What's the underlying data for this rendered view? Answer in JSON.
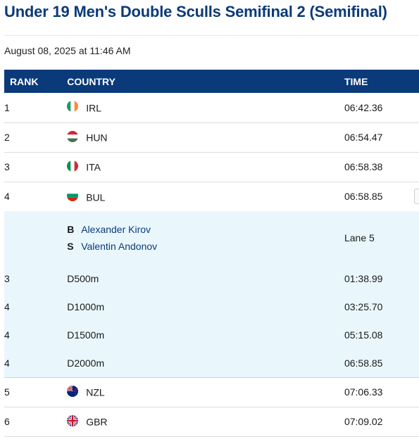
{
  "page": {
    "title": "Under 19 Men's Double Sculls Semifinal 2 (Semifinal)",
    "date": "August 08, 2025 at 11:46 AM"
  },
  "table": {
    "headers": {
      "rank": "RANK",
      "country": "COUNTRY",
      "time": "TIME"
    },
    "rows": [
      {
        "rank": "1",
        "country": "IRL",
        "time": "06:42.36",
        "flag": "irl-flag-icon"
      },
      {
        "rank": "2",
        "country": "HUN",
        "time": "06:54.47",
        "flag": "hun-flag-icon"
      },
      {
        "rank": "3",
        "country": "ITA",
        "time": "06:58.38",
        "flag": "ita-flag-icon"
      },
      {
        "rank": "4",
        "country": "BUL",
        "time": "06:58.85",
        "flag": "bul-flag-icon"
      },
      {
        "rank": "5",
        "country": "NZL",
        "time": "07:06.33",
        "flag": "nzl-flag-icon"
      },
      {
        "rank": "6",
        "country": "GBR",
        "time": "07:09.02",
        "flag": "gbr-flag-icon"
      }
    ],
    "expanded": {
      "crew": [
        {
          "seat": "B",
          "name": "Alexander Kirov"
        },
        {
          "seat": "S",
          "name": "Valentin Andonov"
        }
      ],
      "lane": "Lane 5",
      "splits": [
        {
          "rank": "3",
          "distance": "D500m",
          "time": "01:38.99"
        },
        {
          "rank": "4",
          "distance": "D1000m",
          "time": "03:25.70"
        },
        {
          "rank": "4",
          "distance": "D1500m",
          "time": "05:15.08"
        },
        {
          "rank": "4",
          "distance": "D2000m",
          "time": "06:58.85"
        }
      ]
    }
  },
  "colors": {
    "header_bg": "#0a3a7a",
    "title": "#0a3a7a",
    "expanded_bg": "#e9f7fd",
    "athlete_link": "#0a3a7a"
  }
}
